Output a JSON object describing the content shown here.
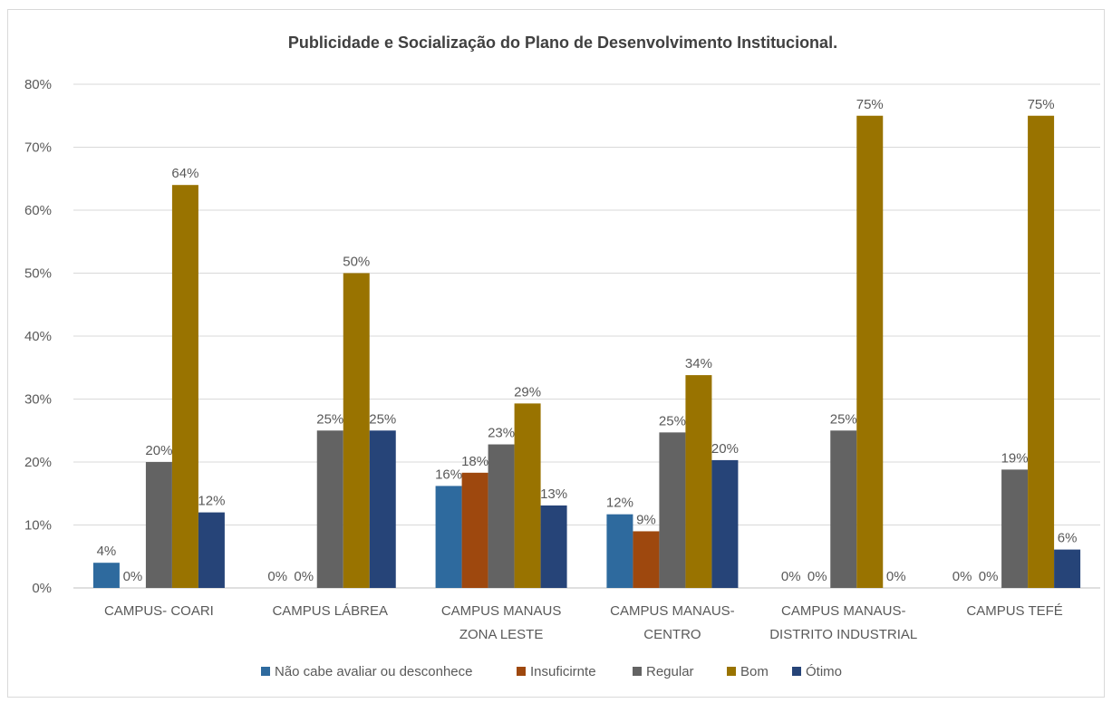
{
  "chart_data": {
    "type": "bar",
    "title": "Publicidade e Socialização do Plano de Desenvolvimento Institucional.",
    "xlabel": "",
    "ylabel": "",
    "ylim": [
      0,
      80
    ],
    "yticks": [
      "0%",
      "10%",
      "20%",
      "30%",
      "40%",
      "50%",
      "60%",
      "70%",
      "80%"
    ],
    "grid": true,
    "legend_position": "bottom",
    "categories": [
      [
        "CAMPUS- COARI"
      ],
      [
        "CAMPUS LÁBREA"
      ],
      [
        "CAMPUS MANAUS",
        "ZONA LESTE"
      ],
      [
        "CAMPUS MANAUS-",
        "CENTRO"
      ],
      [
        "CAMPUS MANAUS-",
        "DISTRITO INDUSTRIAL"
      ],
      [
        "CAMPUS TEFÉ"
      ]
    ],
    "series": [
      {
        "name": "Não cabe avaliar ou desconhece",
        "color": "#2e6a9e",
        "values": [
          4,
          0,
          16.2,
          11.7,
          0,
          0
        ],
        "labels": [
          "4%",
          "0%",
          "16%",
          "12%",
          "0%",
          "0%"
        ]
      },
      {
        "name": "Insuficirnte",
        "color": "#9e480e",
        "values": [
          0,
          0,
          18.3,
          9,
          0,
          0
        ],
        "labels": [
          "0%",
          "0%",
          "18%",
          "9%",
          "0%",
          "0%"
        ]
      },
      {
        "name": "Regular",
        "color": "#636363",
        "values": [
          20,
          25,
          22.8,
          24.7,
          25,
          18.8
        ],
        "labels": [
          "20%",
          "25%",
          "23%",
          "25%",
          "25%",
          "19%"
        ]
      },
      {
        "name": "Bom",
        "color": "#997300",
        "values": [
          64,
          50,
          29.3,
          33.8,
          75,
          75
        ],
        "labels": [
          "64%",
          "50%",
          "29%",
          "34%",
          "75%",
          "75%"
        ]
      },
      {
        "name": "Ótimo",
        "color": "#264478",
        "values": [
          12,
          25,
          13.1,
          20.3,
          0,
          6.1
        ],
        "labels": [
          "12%",
          "25%",
          "13%",
          "20%",
          "0%",
          "6%"
        ]
      }
    ]
  }
}
